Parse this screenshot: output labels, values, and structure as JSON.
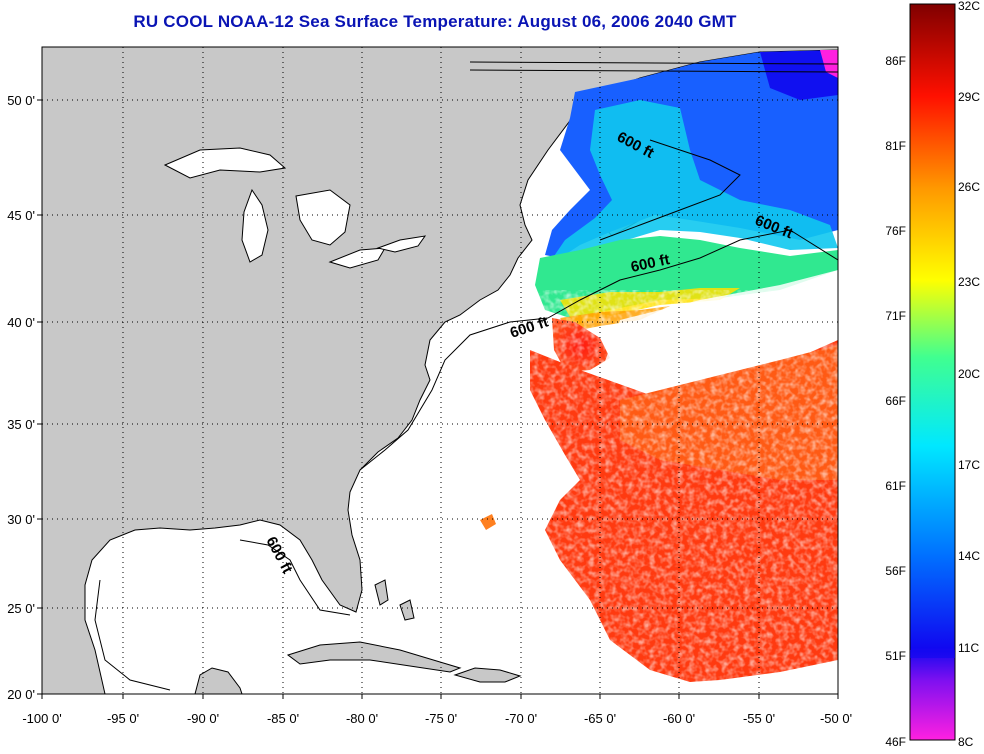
{
  "title": "RU COOL  NOAA-12  Sea Surface Temperature:  August 06, 2006 2040 GMT",
  "map": {
    "lon_range": [
      -100,
      -50
    ],
    "lat_range": [
      20,
      52.5
    ],
    "lon_ticks": [
      "-100 0'",
      "-95 0'",
      "-90 0'",
      "-85 0'",
      "-80 0'",
      "-75 0'",
      "-70 0'",
      "-65 0'",
      "-60 0'",
      "-55 0'",
      "-50 0'"
    ],
    "lat_ticks": [
      "20 0'",
      "25 0'",
      "30 0'",
      "35 0'",
      "40 0'",
      "45 0'",
      "50 0'"
    ],
    "contour_labels": [
      "600 ft",
      "600 ft",
      "600 ft",
      "600 ft",
      "600 ft"
    ],
    "colors": {
      "land": "#c8c8c8",
      "ocean_no_data": "#ffffff",
      "warm": "#ff3a10",
      "cool": "#18b4ff",
      "cold": "#1010f0"
    }
  },
  "colorbar": {
    "stops": [
      "#ff20e0",
      "#1008f0",
      "#0060ff",
      "#00e8ff",
      "#40ff90",
      "#ffff00",
      "#ff9800",
      "#ff1000",
      "#800000"
    ],
    "celsius_labels": [
      "32C",
      "29C",
      "26C",
      "23C",
      "20C",
      "17C",
      "14C",
      "11C",
      "8C"
    ],
    "fahrenheit_labels": [
      "86F",
      "81F",
      "76F",
      "71F",
      "66F",
      "61F",
      "56F",
      "51F",
      "46F"
    ]
  }
}
